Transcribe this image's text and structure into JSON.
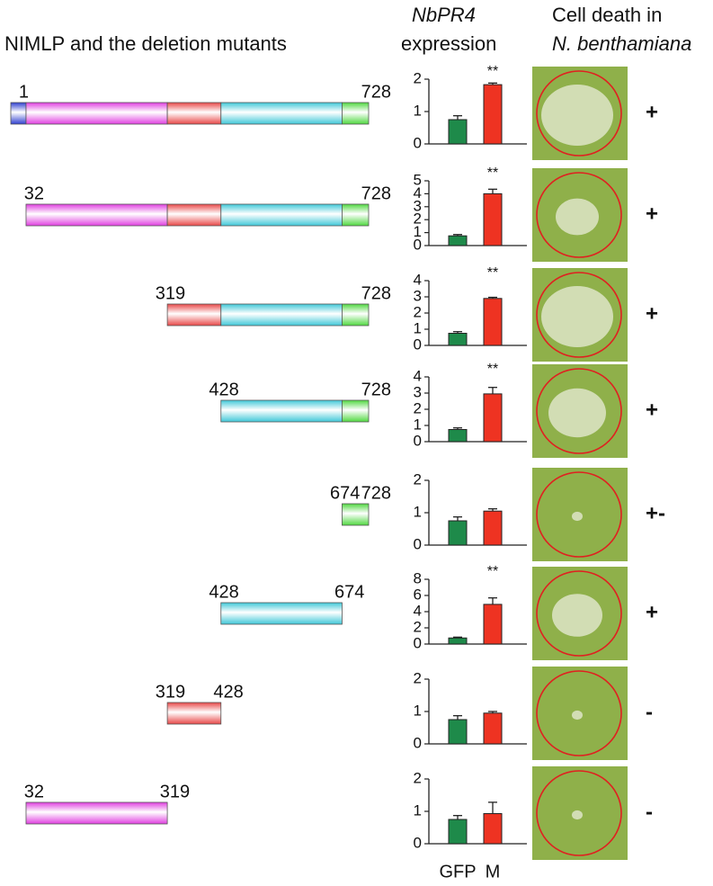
{
  "header": {
    "constructs_title": "NIMLP and the deletion mutants",
    "expression_gene": "NbPR4",
    "expression_label": "expression",
    "cell_death_line1": "Cell death in",
    "cell_death_species": "N. benthamiana"
  },
  "domain_colors": [
    "#3040d0",
    "#e040e0",
    "#e84848",
    "#40c8d8",
    "#50d840"
  ],
  "constructs": [
    {
      "start": 1,
      "end": 728
    },
    {
      "start": 32,
      "end": 728
    },
    {
      "start": 319,
      "end": 728
    },
    {
      "start": 428,
      "end": 728
    },
    {
      "start": 674,
      "end": 728
    },
    {
      "start": 428,
      "end": 674
    },
    {
      "start": 319,
      "end": 428
    },
    {
      "start": 32,
      "end": 319
    }
  ],
  "chart_data": [
    {
      "type": "bar",
      "values": [
        0.75,
        1.83
      ],
      "errors": [
        0.12,
        0.05
      ],
      "colors": [
        "#1e8a4a",
        "#ee3322"
      ],
      "ylim": [
        0,
        2
      ],
      "yticks": [
        0,
        1,
        2
      ],
      "annotation": "**"
    },
    {
      "type": "bar",
      "values": [
        0.75,
        4.0
      ],
      "errors": [
        0.1,
        0.35
      ],
      "colors": [
        "#1e8a4a",
        "#ee3322"
      ],
      "ylim": [
        0,
        5
      ],
      "yticks": [
        0,
        1,
        2,
        3,
        4,
        5
      ],
      "annotation": "**"
    },
    {
      "type": "bar",
      "values": [
        0.75,
        2.9
      ],
      "errors": [
        0.1,
        0.07
      ],
      "colors": [
        "#1e8a4a",
        "#ee3322"
      ],
      "ylim": [
        0,
        4
      ],
      "yticks": [
        0,
        1,
        2,
        3,
        4
      ],
      "annotation": "**"
    },
    {
      "type": "bar",
      "values": [
        0.75,
        2.95
      ],
      "errors": [
        0.1,
        0.4
      ],
      "colors": [
        "#1e8a4a",
        "#ee3322"
      ],
      "ylim": [
        0,
        4
      ],
      "yticks": [
        0,
        1,
        2,
        3,
        4
      ],
      "annotation": "**"
    },
    {
      "type": "bar",
      "values": [
        0.75,
        1.05
      ],
      "errors": [
        0.12,
        0.07
      ],
      "colors": [
        "#1e8a4a",
        "#ee3322"
      ],
      "ylim": [
        0,
        2
      ],
      "yticks": [
        0,
        1,
        2
      ]
    },
    {
      "type": "bar",
      "values": [
        0.75,
        4.9
      ],
      "errors": [
        0.1,
        0.8
      ],
      "colors": [
        "#1e8a4a",
        "#ee3322"
      ],
      "ylim": [
        0,
        8
      ],
      "yticks": [
        0,
        2,
        4,
        6,
        8
      ],
      "annotation": "**"
    },
    {
      "type": "bar",
      "values": [
        0.75,
        0.95
      ],
      "errors": [
        0.12,
        0.05
      ],
      "colors": [
        "#1e8a4a",
        "#ee3322"
      ],
      "ylim": [
        0,
        2
      ],
      "yticks": [
        0,
        1,
        2
      ]
    },
    {
      "type": "bar",
      "values": [
        0.75,
        0.93
      ],
      "errors": [
        0.12,
        0.35
      ],
      "colors": [
        "#1e8a4a",
        "#ee3322"
      ],
      "ylim": [
        0,
        2
      ],
      "yticks": [
        0,
        1,
        2
      ],
      "categories": [
        "GFP",
        "M"
      ]
    }
  ],
  "cell_death": [
    "+",
    "+",
    "+",
    "+",
    "+-",
    "+",
    "-",
    "-"
  ]
}
